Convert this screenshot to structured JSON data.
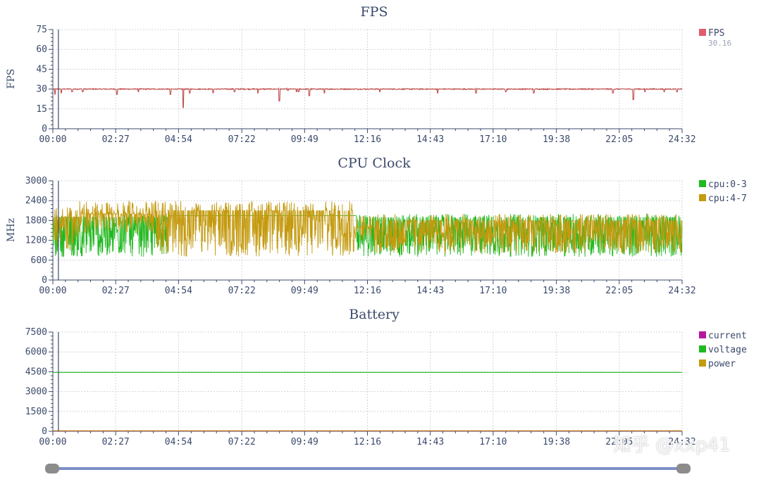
{
  "watermark": "知乎 @xxp41",
  "colors": {
    "axis": "#3b4a6b",
    "grid": "#d0d4dc",
    "fps": "#c0504d",
    "fps_legend": "#e35b6b",
    "cpu_0_3": "#21b921",
    "cpu_4_7": "#c49a0f",
    "current": "#b5179e",
    "voltage": "#21b921",
    "power": "#c49a0f",
    "cursor": "#3b4a6b"
  },
  "chart_data": [
    {
      "type": "line",
      "title": "FPS",
      "ylabel": "FPS",
      "ylim": [
        0,
        75
      ],
      "yticks": [
        "0",
        "15",
        "30",
        "45",
        "60",
        "75"
      ],
      "xlim": [
        "00:00",
        "24:32"
      ],
      "xticks": [
        "00:00",
        "02:27",
        "04:54",
        "07:22",
        "09:49",
        "12:16",
        "14:43",
        "17:10",
        "19:38",
        "22:05",
        "24:32"
      ],
      "grid": true,
      "legend_position": "right",
      "cursor_x": "00:13",
      "series": [
        {
          "name": "FPS",
          "legend_value": "30.16",
          "baseline": 30,
          "dips": [
            [
              "00:05",
              26
            ],
            [
              "00:20",
              27
            ],
            [
              "00:45",
              28
            ],
            [
              "01:10",
              28
            ],
            [
              "02:30",
              26
            ],
            [
              "03:20",
              28
            ],
            [
              "04:35",
              26
            ],
            [
              "05:05",
              16
            ],
            [
              "05:20",
              27
            ],
            [
              "06:15",
              27
            ],
            [
              "07:05",
              28
            ],
            [
              "08:00",
              27
            ],
            [
              "09:35",
              28
            ],
            [
              "10:00",
              25
            ],
            [
              "08:50",
              21
            ],
            [
              "09:10",
              29
            ],
            [
              "09:30",
              28
            ],
            [
              "10:35",
              27
            ],
            [
              "12:45",
              28
            ],
            [
              "15:00",
              27
            ],
            [
              "16:30",
              27
            ],
            [
              "17:40",
              28
            ],
            [
              "18:45",
              27
            ],
            [
              "21:50",
              27
            ],
            [
              "22:38",
              22
            ],
            [
              "23:05",
              28
            ],
            [
              "23:50",
              28
            ],
            [
              "24:20",
              28
            ]
          ]
        }
      ]
    },
    {
      "type": "line",
      "title": "CPU Clock",
      "ylabel": "MHz",
      "ylim": [
        0,
        3000
      ],
      "yticks": [
        "0",
        "600",
        "1200",
        "1800",
        "2400",
        "3000"
      ],
      "xlim": [
        "00:00",
        "24:32"
      ],
      "xticks": [
        "00:00",
        "02:27",
        "04:54",
        "07:22",
        "09:49",
        "12:16",
        "14:43",
        "17:10",
        "19:38",
        "22:05",
        "24:32"
      ],
      "grid": true,
      "legend_position": "right",
      "cursor_x": "00:13",
      "series": [
        {
          "name": "cpu:0-3",
          "segments": [
            {
              "from": "00:00",
              "to": "04:30",
              "min": 700,
              "max": 2000,
              "typ": 1900,
              "activity": 0.8
            },
            {
              "from": "04:30",
              "to": "11:50",
              "min": 1950,
              "max": 1950,
              "typ": 1950,
              "activity": 0.0
            },
            {
              "from": "11:50",
              "to": "24:32",
              "min": 700,
              "max": 2000,
              "typ": 1900,
              "activity": 0.9
            }
          ]
        },
        {
          "name": "cpu:4-7",
          "segments": [
            {
              "from": "00:00",
              "to": "01:00",
              "min": 900,
              "max": 2200,
              "typ": 1900,
              "activity": 0.6
            },
            {
              "from": "01:00",
              "to": "04:00",
              "min": 1400,
              "max": 2400,
              "typ": 2000,
              "activity": 0.6
            },
            {
              "from": "04:00",
              "to": "11:45",
              "min": 700,
              "max": 2400,
              "typ": 2100,
              "activity": 0.7
            },
            {
              "from": "11:45",
              "to": "12:30",
              "min": 1200,
              "max": 2000,
              "typ": 1600,
              "activity": 0.5
            },
            {
              "from": "12:30",
              "to": "24:32",
              "min": 800,
              "max": 2000,
              "typ": 1800,
              "activity": 0.8
            }
          ]
        }
      ]
    },
    {
      "type": "line",
      "title": "Battery",
      "ylabel": "",
      "ylim": [
        0,
        7500
      ],
      "yticks": [
        "0",
        "1500",
        "3000",
        "4500",
        "6000",
        "7500"
      ],
      "xlim": [
        "00:00",
        "24:32"
      ],
      "xticks": [
        "00:00",
        "02:27",
        "04:54",
        "07:22",
        "09:49",
        "12:16",
        "14:43",
        "17:10",
        "19:38",
        "22:05",
        "24:32"
      ],
      "grid": true,
      "legend_position": "right",
      "cursor_x": "00:13",
      "series": [
        {
          "name": "current",
          "constant": 20
        },
        {
          "name": "voltage",
          "constant": 4450
        },
        {
          "name": "power",
          "constant": 40
        }
      ]
    }
  ]
}
